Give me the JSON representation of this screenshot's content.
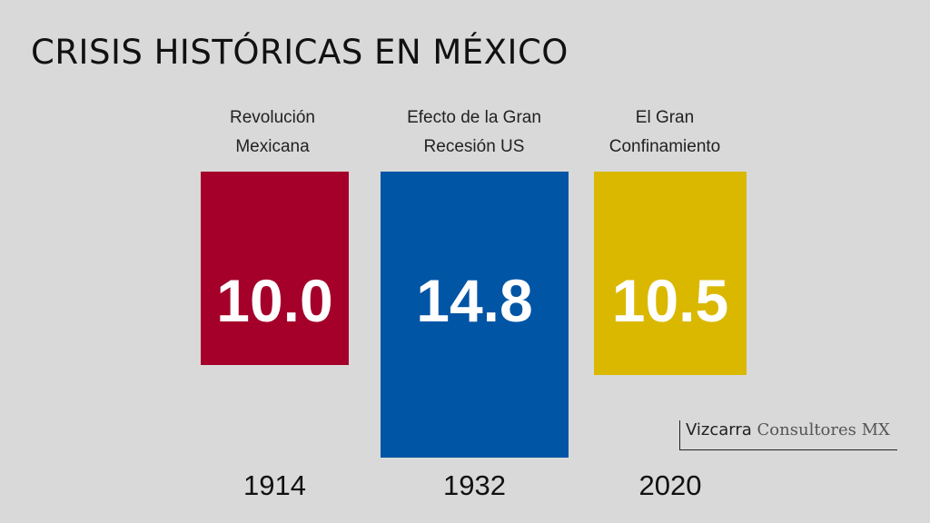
{
  "title": "CRISIS HISTÓRICAS EN MÉXICO",
  "chart_data": {
    "type": "bar",
    "title": "CRISIS HISTÓRICAS EN MÉXICO",
    "categories": [
      "Revolución\nMexicana",
      "Efecto de la Gran\nRecesión  US",
      "El Gran\nConfinamiento"
    ],
    "years": [
      "1914",
      "1932",
      "2020"
    ],
    "values": [
      10.0,
      14.8,
      10.5
    ],
    "value_labels": [
      "10.0",
      "14.8",
      "10.5"
    ],
    "colors": [
      "#a5002a",
      "#0055a5",
      "#dab800"
    ],
    "xlabel": "",
    "ylabel": "",
    "grid": false
  },
  "brand": {
    "part1": "Vizcarra",
    "part2": " Consultores MX"
  }
}
